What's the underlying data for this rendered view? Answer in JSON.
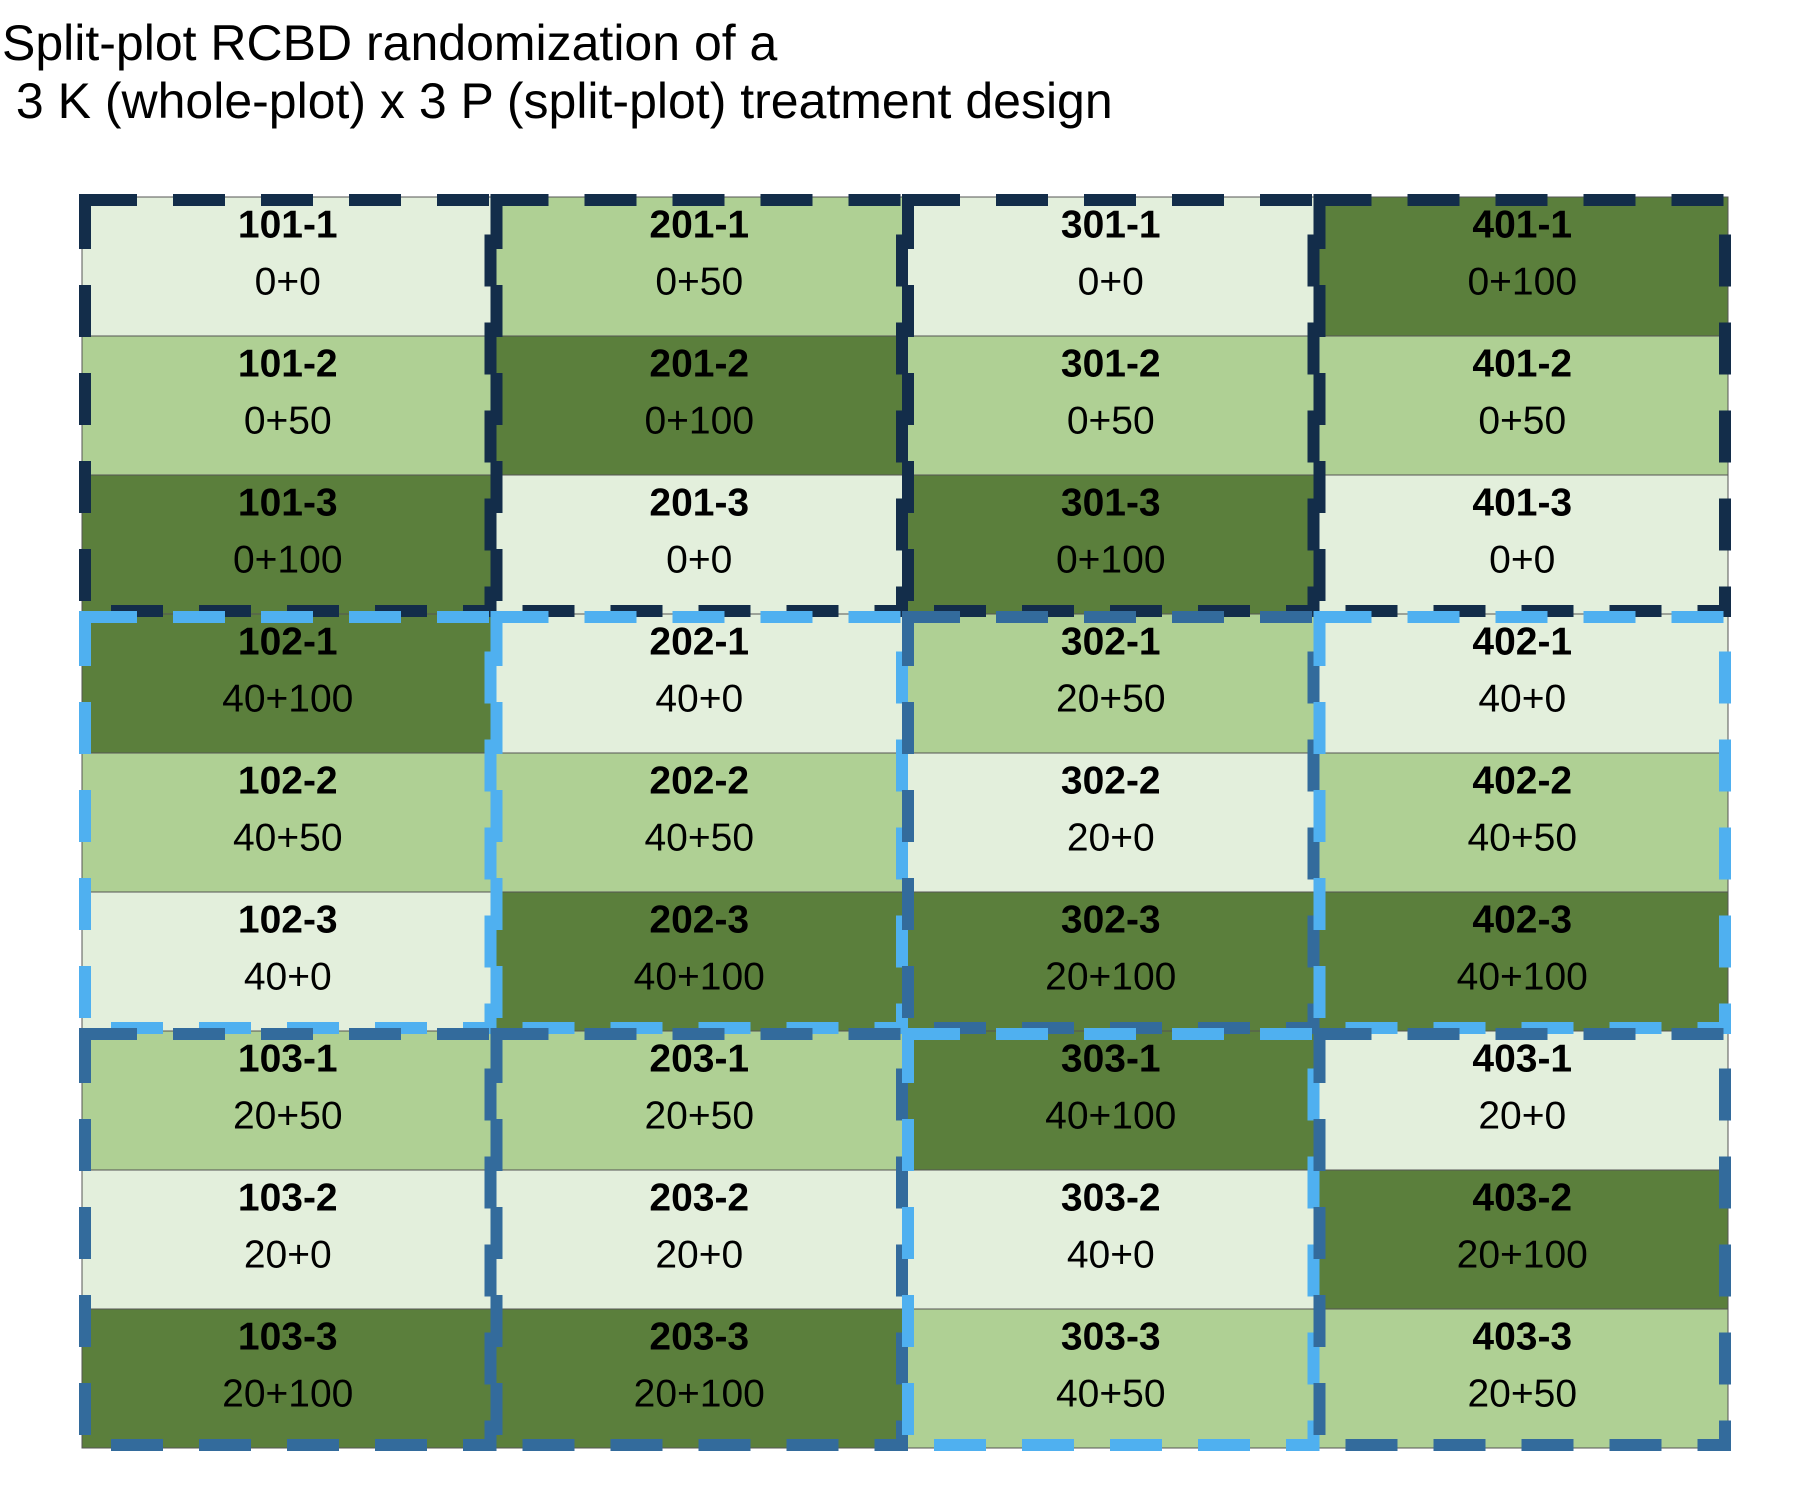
{
  "title": [
    "Split-plot RCBD randomization of a",
    " 3 K (whole-plot) x 3 P (split-plot) treatment design"
  ],
  "plots": [
    [
      {
        "id": "101-1",
        "treatment": "0+0",
        "fill": "#e3efdc"
      },
      {
        "id": "201-1",
        "treatment": "0+50",
        "fill": "#afd094"
      },
      {
        "id": "301-1",
        "treatment": "0+0",
        "fill": "#e3efdc"
      },
      {
        "id": "401-1",
        "treatment": "0+100",
        "fill": "#5b7f3c"
      }
    ],
    [
      {
        "id": "101-2",
        "treatment": "0+50",
        "fill": "#afd094"
      },
      {
        "id": "201-2",
        "treatment": "0+100",
        "fill": "#5b7f3c"
      },
      {
        "id": "301-2",
        "treatment": "0+50",
        "fill": "#afd094"
      },
      {
        "id": "401-2",
        "treatment": "0+50",
        "fill": "#afd094"
      }
    ],
    [
      {
        "id": "101-3",
        "treatment": "0+100",
        "fill": "#5b7f3c"
      },
      {
        "id": "201-3",
        "treatment": "0+0",
        "fill": "#e3efdc"
      },
      {
        "id": "301-3",
        "treatment": "0+100",
        "fill": "#5b7f3c"
      },
      {
        "id": "401-3",
        "treatment": "0+0",
        "fill": "#e3efdc"
      }
    ],
    [
      {
        "id": "102-1",
        "treatment": "40+100",
        "fill": "#5b7f3c"
      },
      {
        "id": "202-1",
        "treatment": "40+0",
        "fill": "#e3efdc"
      },
      {
        "id": "302-1",
        "treatment": "20+50",
        "fill": "#afd094"
      },
      {
        "id": "402-1",
        "treatment": "40+0",
        "fill": "#e3efdc"
      }
    ],
    [
      {
        "id": "102-2",
        "treatment": "40+50",
        "fill": "#afd094"
      },
      {
        "id": "202-2",
        "treatment": "40+50",
        "fill": "#afd094"
      },
      {
        "id": "302-2",
        "treatment": "20+0",
        "fill": "#e3efdc"
      },
      {
        "id": "402-2",
        "treatment": "40+50",
        "fill": "#afd094"
      }
    ],
    [
      {
        "id": "102-3",
        "treatment": "40+0",
        "fill": "#e3efdc"
      },
      {
        "id": "202-3",
        "treatment": "40+100",
        "fill": "#5b7f3c"
      },
      {
        "id": "302-3",
        "treatment": "20+100",
        "fill": "#5b7f3c"
      },
      {
        "id": "402-3",
        "treatment": "40+100",
        "fill": "#5b7f3c"
      }
    ],
    [
      {
        "id": "103-1",
        "treatment": "20+50",
        "fill": "#afd094"
      },
      {
        "id": "203-1",
        "treatment": "20+50",
        "fill": "#afd094"
      },
      {
        "id": "303-1",
        "treatment": "40+100",
        "fill": "#5b7f3c"
      },
      {
        "id": "403-1",
        "treatment": "20+0",
        "fill": "#e3efdc"
      }
    ],
    [
      {
        "id": "103-2",
        "treatment": "20+0",
        "fill": "#e3efdc"
      },
      {
        "id": "203-2",
        "treatment": "20+0",
        "fill": "#e3efdc"
      },
      {
        "id": "303-2",
        "treatment": "40+0",
        "fill": "#e3efdc"
      },
      {
        "id": "403-2",
        "treatment": "20+100",
        "fill": "#5b7f3c"
      }
    ],
    [
      {
        "id": "103-3",
        "treatment": "20+100",
        "fill": "#5b7f3c"
      },
      {
        "id": "203-3",
        "treatment": "20+100",
        "fill": "#5b7f3c"
      },
      {
        "id": "303-3",
        "treatment": "40+50",
        "fill": "#afd094"
      },
      {
        "id": "403-3",
        "treatment": "20+50",
        "fill": "#afd094"
      }
    ]
  ],
  "whole_plot_borders": [
    [
      "#132d4a",
      "#4fb0f0",
      "#336b9c"
    ],
    [
      "#132d4a",
      "#4fb0f0",
      "#336b9c"
    ],
    [
      "#132d4a",
      "#336b9c",
      "#4fb0f0"
    ],
    [
      "#132d4a",
      "#4fb0f0",
      "#336b9c"
    ]
  ]
}
